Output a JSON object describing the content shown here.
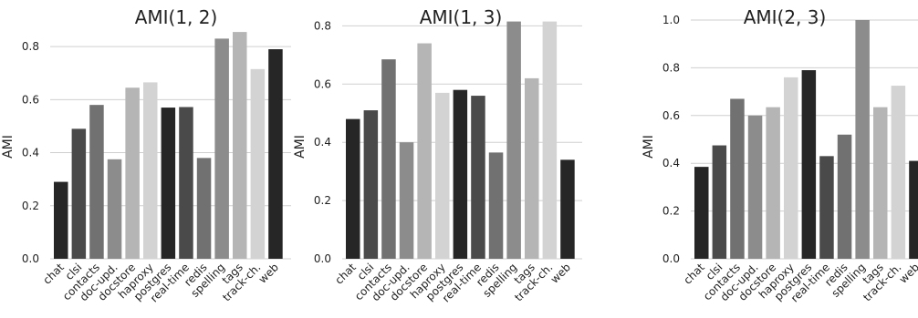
{
  "chart_data": [
    {
      "type": "bar",
      "title": "AMI(1, 2)",
      "ylabel": "AMI",
      "xlabel": "",
      "categories": [
        "chat",
        "clsi",
        "contacts",
        "doc-upd.",
        "docstore",
        "haproxy",
        "postgres",
        "real-time",
        "redis",
        "spelling",
        "tags",
        "track-ch.",
        "web"
      ],
      "values": [
        0.29,
        0.49,
        0.58,
        0.375,
        0.645,
        0.665,
        0.57,
        0.572,
        0.38,
        0.83,
        0.855,
        0.715,
        0.79
      ],
      "ylim": [
        0,
        0.9
      ],
      "yticks": [
        "0.0",
        "0.2",
        "0.4",
        "0.6",
        "0.8"
      ],
      "grid": "horizontal",
      "bar_colors": [
        "#262626",
        "#4a4a4a",
        "#717171",
        "#8c8c8c",
        "#b5b5b5",
        "#d3d3d3",
        "#262626",
        "#4a4a4a",
        "#717171",
        "#8c8c8c",
        "#b5b5b5",
        "#d3d3d3",
        "#262626"
      ]
    },
    {
      "type": "bar",
      "title": "AMI(1, 3)",
      "ylabel": "AMI",
      "xlabel": "",
      "categories": [
        "chat",
        "clsi",
        "contacts",
        "doc-upd.",
        "docstore",
        "haproxy",
        "postgres",
        "real-time",
        "redis",
        "spelling",
        "tags",
        "track-ch.",
        "web"
      ],
      "values": [
        0.48,
        0.51,
        0.685,
        0.4,
        0.74,
        0.57,
        0.58,
        0.56,
        0.365,
        0.815,
        0.62,
        0.815,
        0.34
      ],
      "ylim": [
        0,
        0.82
      ],
      "yticks": [
        "0.0",
        "0.2",
        "0.4",
        "0.6",
        "0.8"
      ],
      "grid": "horizontal",
      "bar_colors": [
        "#262626",
        "#4a4a4a",
        "#717171",
        "#8c8c8c",
        "#b5b5b5",
        "#d3d3d3",
        "#262626",
        "#4a4a4a",
        "#717171",
        "#8c8c8c",
        "#b5b5b5",
        "#d3d3d3",
        "#262626"
      ]
    },
    {
      "type": "bar",
      "title": "AMI(2, 3)",
      "ylabel": "AMI",
      "xlabel": "",
      "categories": [
        "chat",
        "clsi",
        "contacts",
        "doc-upd.",
        "docstore",
        "haproxy",
        "postgres",
        "real-time",
        "redis",
        "spelling",
        "tags",
        "track-ch.",
        "web"
      ],
      "values": [
        0.385,
        0.475,
        0.67,
        0.6,
        0.635,
        0.76,
        0.79,
        0.43,
        0.52,
        1.0,
        0.635,
        0.725,
        0.41
      ],
      "ylim": [
        0,
        1.0
      ],
      "yticks": [
        "0.0",
        "0.2",
        "0.4",
        "0.6",
        "0.8",
        "1.0"
      ],
      "grid": "horizontal",
      "bar_colors": [
        "#262626",
        "#4a4a4a",
        "#717171",
        "#8c8c8c",
        "#b5b5b5",
        "#d3d3d3",
        "#262626",
        "#4a4a4a",
        "#717171",
        "#8c8c8c",
        "#b5b5b5",
        "#d3d3d3",
        "#262626"
      ]
    }
  ],
  "colors": {
    "grid": "#cfcfcf",
    "axis": "#555555",
    "text": "#222222"
  }
}
